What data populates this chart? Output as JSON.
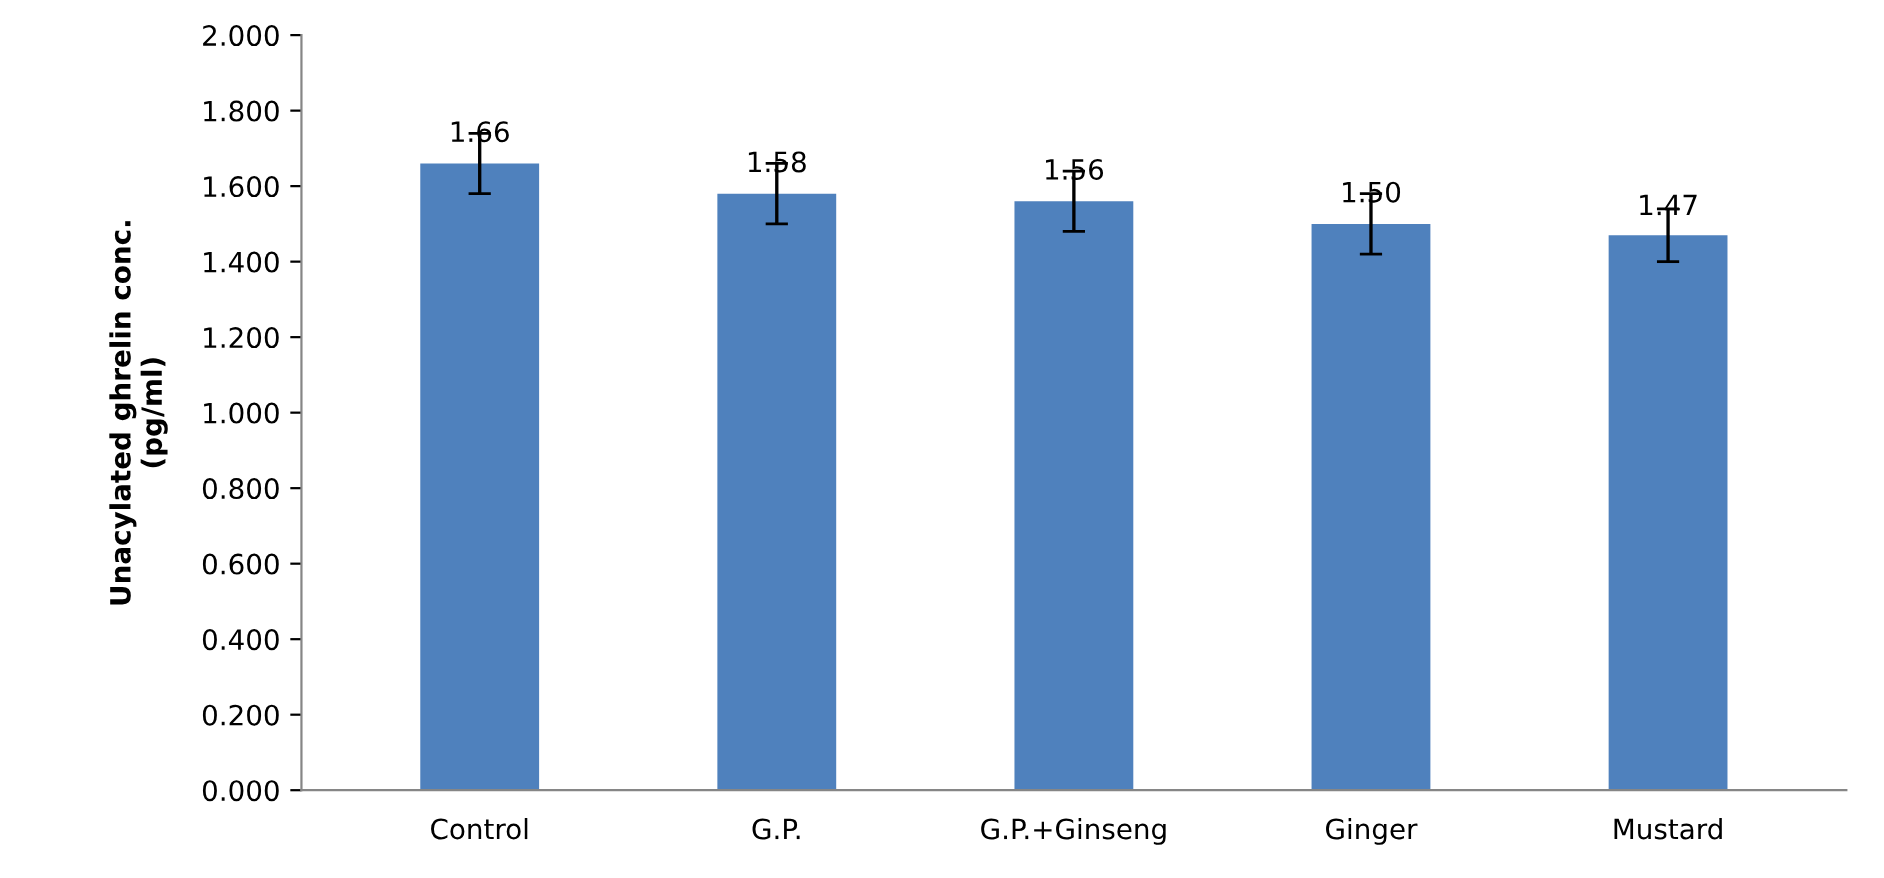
{
  "chart_data": {
    "type": "bar",
    "ylabel": "Unacylated ghrelin conc.\n(pg/ml)",
    "categories": [
      "Control",
      "G.P.",
      "G.P.+Ginseng",
      "Ginger",
      "Mustard"
    ],
    "values": [
      1.66,
      1.58,
      1.56,
      1.5,
      1.47
    ],
    "errors": [
      0.08,
      0.08,
      0.08,
      0.08,
      0.07
    ],
    "value_labels": [
      "1.66",
      "1.58",
      "1.56",
      "1.50",
      "1.47"
    ],
    "color": "#4f81bd",
    "ylim": [
      0,
      2
    ],
    "yticks": [
      {
        "value": 0,
        "label": "0.000"
      },
      {
        "value": 0.2,
        "label": "0.200"
      },
      {
        "value": 0.4,
        "label": "0.400"
      },
      {
        "value": 0.6,
        "label": "0.600"
      },
      {
        "value": 0.8,
        "label": "0.800"
      },
      {
        "value": 1.0,
        "label": "1.000"
      },
      {
        "value": 1.2,
        "label": "1.200"
      },
      {
        "value": 1.4,
        "label": "1.400"
      },
      {
        "value": 1.6,
        "label": "1.600"
      },
      {
        "value": 1.8,
        "label": "1.800"
      },
      {
        "value": 2.0,
        "label": "2.000"
      }
    ],
    "grid": false,
    "legend": false
  }
}
